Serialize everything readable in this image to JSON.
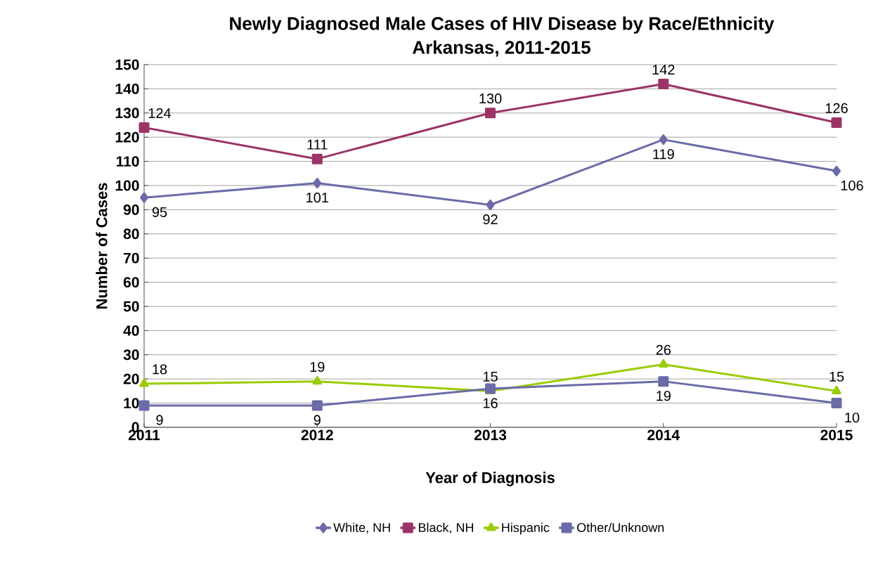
{
  "chart_data": {
    "type": "line",
    "title": "Newly Diagnosed Male Cases of HIV Disease  by Race/Ethnicity",
    "subtitle": "Arkansas, 2011-2015",
    "xlabel": "Year of Diagnosis",
    "ylabel": "Number of Cases",
    "categories": [
      "2011",
      "2012",
      "2013",
      "2014",
      "2015"
    ],
    "series": [
      {
        "name": "White, NH",
        "color": "#6b6ba8",
        "marker": "diamond",
        "values": [
          95,
          101,
          92,
          119,
          106
        ]
      },
      {
        "name": "Black, NH",
        "color": "#9b3466",
        "marker": "square",
        "values": [
          124,
          111,
          130,
          142,
          126
        ]
      },
      {
        "name": "Hispanic",
        "color": "#99cc00",
        "marker": "triangle",
        "values": [
          18,
          19,
          15,
          26,
          15
        ]
      },
      {
        "name": "Other/Unknown",
        "color": "#6b6ba8",
        "marker": "square",
        "values": [
          9,
          9,
          16,
          19,
          10
        ]
      }
    ],
    "ylim": [
      0,
      150
    ],
    "yticks": [
      0,
      10,
      20,
      30,
      40,
      50,
      60,
      70,
      80,
      90,
      100,
      110,
      120,
      130,
      140,
      150
    ],
    "grid": "y",
    "legend": "bottom",
    "line_style": "solid",
    "data_labels": true
  }
}
